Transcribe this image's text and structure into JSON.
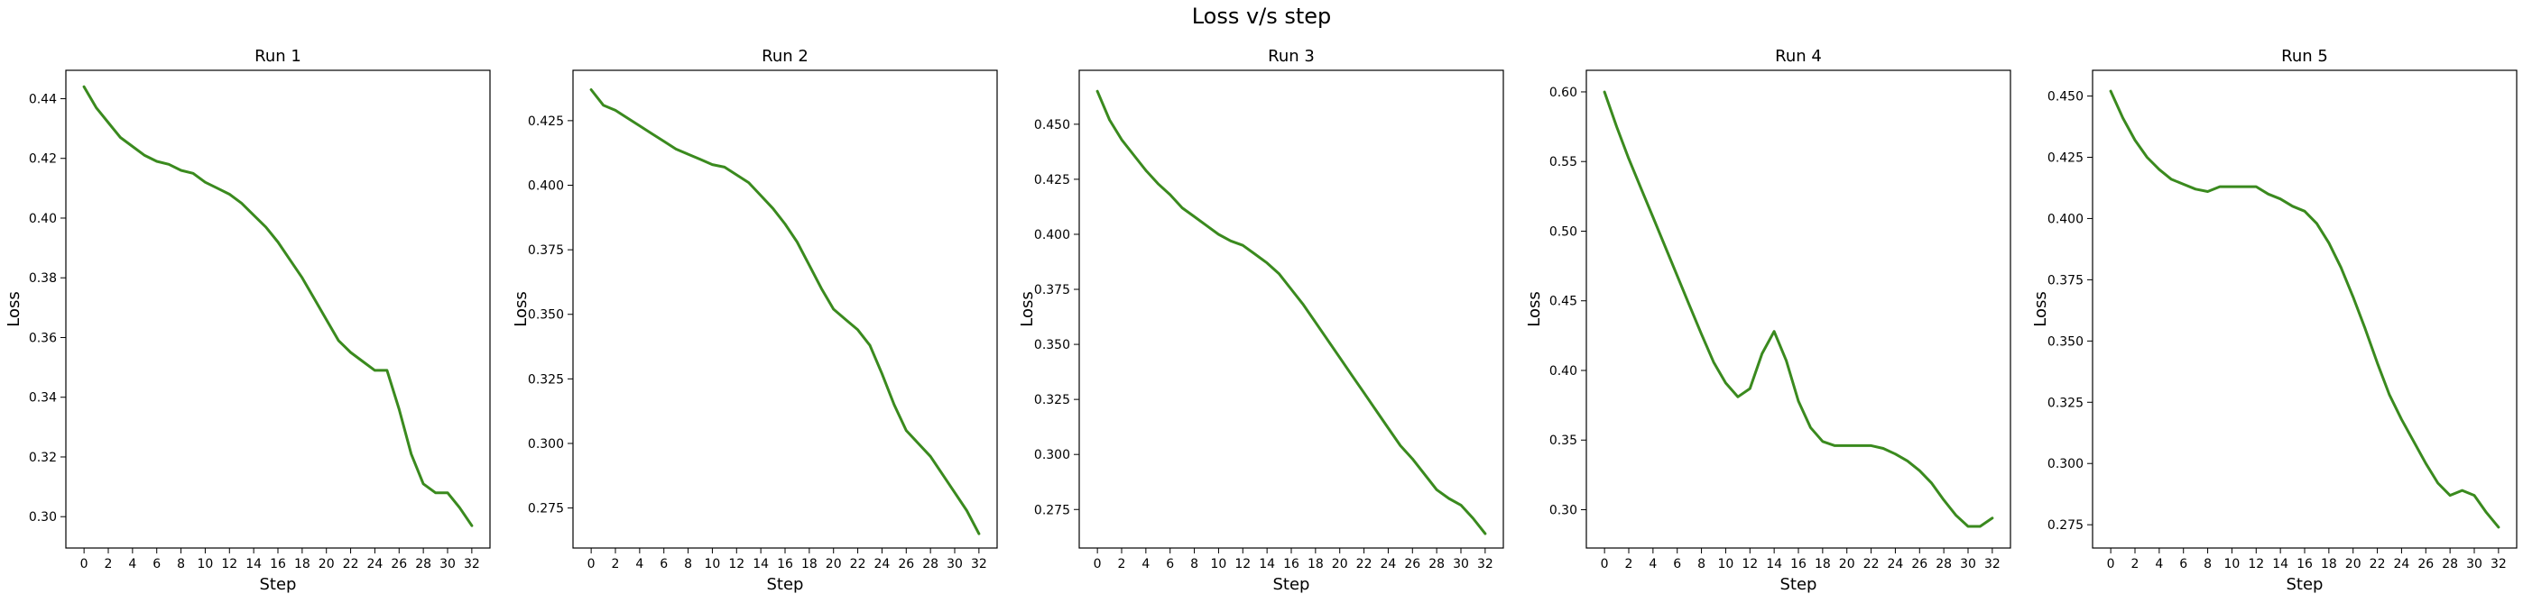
{
  "figure": {
    "title": "Loss v/s step",
    "line_color": "#3a8a1e"
  },
  "chart_data": [
    {
      "type": "line",
      "title": "Run 1",
      "xlabel": "Step",
      "ylabel": "Loss",
      "xlim": [
        -1.5,
        33.5
      ],
      "ylim": [
        0.2895,
        0.4495
      ],
      "xticks": [
        0,
        2,
        4,
        6,
        8,
        10,
        12,
        14,
        16,
        18,
        20,
        22,
        24,
        26,
        28,
        30,
        32
      ],
      "yticks": [
        0.3,
        0.32,
        0.34,
        0.36,
        0.38,
        0.4,
        0.42,
        0.44
      ],
      "ytick_labels": [
        "0.30",
        "0.32",
        "0.34",
        "0.36",
        "0.38",
        "0.40",
        "0.42",
        "0.44"
      ],
      "grid": false,
      "x": [
        0,
        1,
        2,
        3,
        4,
        5,
        6,
        7,
        8,
        9,
        10,
        11,
        12,
        13,
        14,
        15,
        16,
        17,
        18,
        19,
        20,
        21,
        22,
        23,
        24,
        25,
        26,
        27,
        28,
        29,
        30,
        31,
        32
      ],
      "y": [
        0.444,
        0.437,
        0.432,
        0.427,
        0.424,
        0.421,
        0.419,
        0.418,
        0.416,
        0.415,
        0.412,
        0.41,
        0.408,
        0.405,
        0.401,
        0.397,
        0.392,
        0.386,
        0.38,
        0.373,
        0.366,
        0.359,
        0.355,
        0.352,
        0.349,
        0.349,
        0.336,
        0.321,
        0.311,
        0.308,
        0.308,
        0.303,
        0.297
      ]
    },
    {
      "type": "line",
      "title": "Run 2",
      "xlabel": "Step",
      "ylabel": "Loss",
      "xlim": [
        -1.5,
        33.5
      ],
      "ylim": [
        0.2595,
        0.4445
      ],
      "xticks": [
        0,
        2,
        4,
        6,
        8,
        10,
        12,
        14,
        16,
        18,
        20,
        22,
        24,
        26,
        28,
        30,
        32
      ],
      "yticks": [
        0.275,
        0.3,
        0.325,
        0.35,
        0.375,
        0.4,
        0.425
      ],
      "ytick_labels": [
        "0.275",
        "0.300",
        "0.325",
        "0.350",
        "0.375",
        "0.400",
        "0.425"
      ],
      "grid": false,
      "x": [
        0,
        1,
        2,
        3,
        4,
        5,
        6,
        7,
        8,
        9,
        10,
        11,
        12,
        13,
        14,
        15,
        16,
        17,
        18,
        19,
        20,
        21,
        22,
        23,
        24,
        25,
        26,
        27,
        28,
        29,
        30,
        31,
        32
      ],
      "y": [
        0.437,
        0.431,
        0.429,
        0.426,
        0.423,
        0.42,
        0.417,
        0.414,
        0.412,
        0.41,
        0.408,
        0.407,
        0.404,
        0.401,
        0.396,
        0.391,
        0.385,
        0.378,
        0.369,
        0.36,
        0.352,
        0.348,
        0.344,
        0.338,
        0.327,
        0.315,
        0.305,
        0.3,
        0.295,
        0.288,
        0.281,
        0.274,
        0.265
      ]
    },
    {
      "type": "line",
      "title": "Run 3",
      "xlabel": "Step",
      "ylabel": "Loss",
      "xlim": [
        -1.5,
        33.5
      ],
      "ylim": [
        0.2575,
        0.4745
      ],
      "xticks": [
        0,
        2,
        4,
        6,
        8,
        10,
        12,
        14,
        16,
        18,
        20,
        22,
        24,
        26,
        28,
        30,
        32
      ],
      "yticks": [
        0.275,
        0.3,
        0.325,
        0.35,
        0.375,
        0.4,
        0.425,
        0.45
      ],
      "ytick_labels": [
        "0.275",
        "0.300",
        "0.325",
        "0.350",
        "0.375",
        "0.400",
        "0.425",
        "0.450"
      ],
      "grid": false,
      "x": [
        0,
        1,
        2,
        3,
        4,
        5,
        6,
        7,
        8,
        9,
        10,
        11,
        12,
        13,
        14,
        15,
        16,
        17,
        18,
        19,
        20,
        21,
        22,
        23,
        24,
        25,
        26,
        27,
        28,
        29,
        30,
        31,
        32
      ],
      "y": [
        0.465,
        0.452,
        0.443,
        0.436,
        0.429,
        0.423,
        0.418,
        0.412,
        0.408,
        0.404,
        0.4,
        0.397,
        0.395,
        0.391,
        0.387,
        0.382,
        0.375,
        0.368,
        0.36,
        0.352,
        0.344,
        0.336,
        0.328,
        0.32,
        0.312,
        0.304,
        0.298,
        0.291,
        0.284,
        0.28,
        0.277,
        0.271,
        0.264
      ]
    },
    {
      "type": "line",
      "title": "Run 4",
      "xlabel": "Step",
      "ylabel": "Loss",
      "xlim": [
        -1.5,
        33.5
      ],
      "ylim": [
        0.2725,
        0.6155
      ],
      "xticks": [
        0,
        2,
        4,
        6,
        8,
        10,
        12,
        14,
        16,
        18,
        20,
        22,
        24,
        26,
        28,
        30,
        32
      ],
      "yticks": [
        0.3,
        0.35,
        0.4,
        0.45,
        0.5,
        0.55,
        0.6
      ],
      "ytick_labels": [
        "0.30",
        "0.35",
        "0.40",
        "0.45",
        "0.50",
        "0.55",
        "0.60"
      ],
      "grid": false,
      "x": [
        0,
        1,
        2,
        3,
        4,
        5,
        6,
        7,
        8,
        9,
        10,
        11,
        12,
        13,
        14,
        15,
        16,
        17,
        18,
        19,
        20,
        21,
        22,
        23,
        24,
        25,
        26,
        27,
        28,
        29,
        30,
        31,
        32
      ],
      "y": [
        0.6,
        0.575,
        0.552,
        0.531,
        0.51,
        0.489,
        0.468,
        0.447,
        0.426,
        0.406,
        0.391,
        0.381,
        0.387,
        0.412,
        0.428,
        0.407,
        0.378,
        0.359,
        0.349,
        0.346,
        0.346,
        0.346,
        0.346,
        0.344,
        0.34,
        0.335,
        0.328,
        0.319,
        0.307,
        0.296,
        0.288,
        0.288,
        0.294
      ]
    },
    {
      "type": "line",
      "title": "Run 5",
      "xlabel": "Step",
      "ylabel": "Loss",
      "xlim": [
        -1.5,
        33.5
      ],
      "ylim": [
        0.2655,
        0.4605
      ],
      "xticks": [
        0,
        2,
        4,
        6,
        8,
        10,
        12,
        14,
        16,
        18,
        20,
        22,
        24,
        26,
        28,
        30,
        32
      ],
      "yticks": [
        0.275,
        0.3,
        0.325,
        0.35,
        0.375,
        0.4,
        0.425,
        0.45
      ],
      "ytick_labels": [
        "0.275",
        "0.300",
        "0.325",
        "0.350",
        "0.375",
        "0.400",
        "0.425",
        "0.450"
      ],
      "grid": false,
      "x": [
        0,
        1,
        2,
        3,
        4,
        5,
        6,
        7,
        8,
        9,
        10,
        11,
        12,
        13,
        14,
        15,
        16,
        17,
        18,
        19,
        20,
        21,
        22,
        23,
        24,
        25,
        26,
        27,
        28,
        29,
        30,
        31,
        32
      ],
      "y": [
        0.452,
        0.441,
        0.432,
        0.425,
        0.42,
        0.416,
        0.414,
        0.412,
        0.411,
        0.413,
        0.413,
        0.413,
        0.413,
        0.41,
        0.408,
        0.405,
        0.403,
        0.398,
        0.39,
        0.38,
        0.368,
        0.355,
        0.341,
        0.328,
        0.318,
        0.309,
        0.3,
        0.292,
        0.287,
        0.289,
        0.287,
        0.28,
        0.274
      ]
    }
  ]
}
